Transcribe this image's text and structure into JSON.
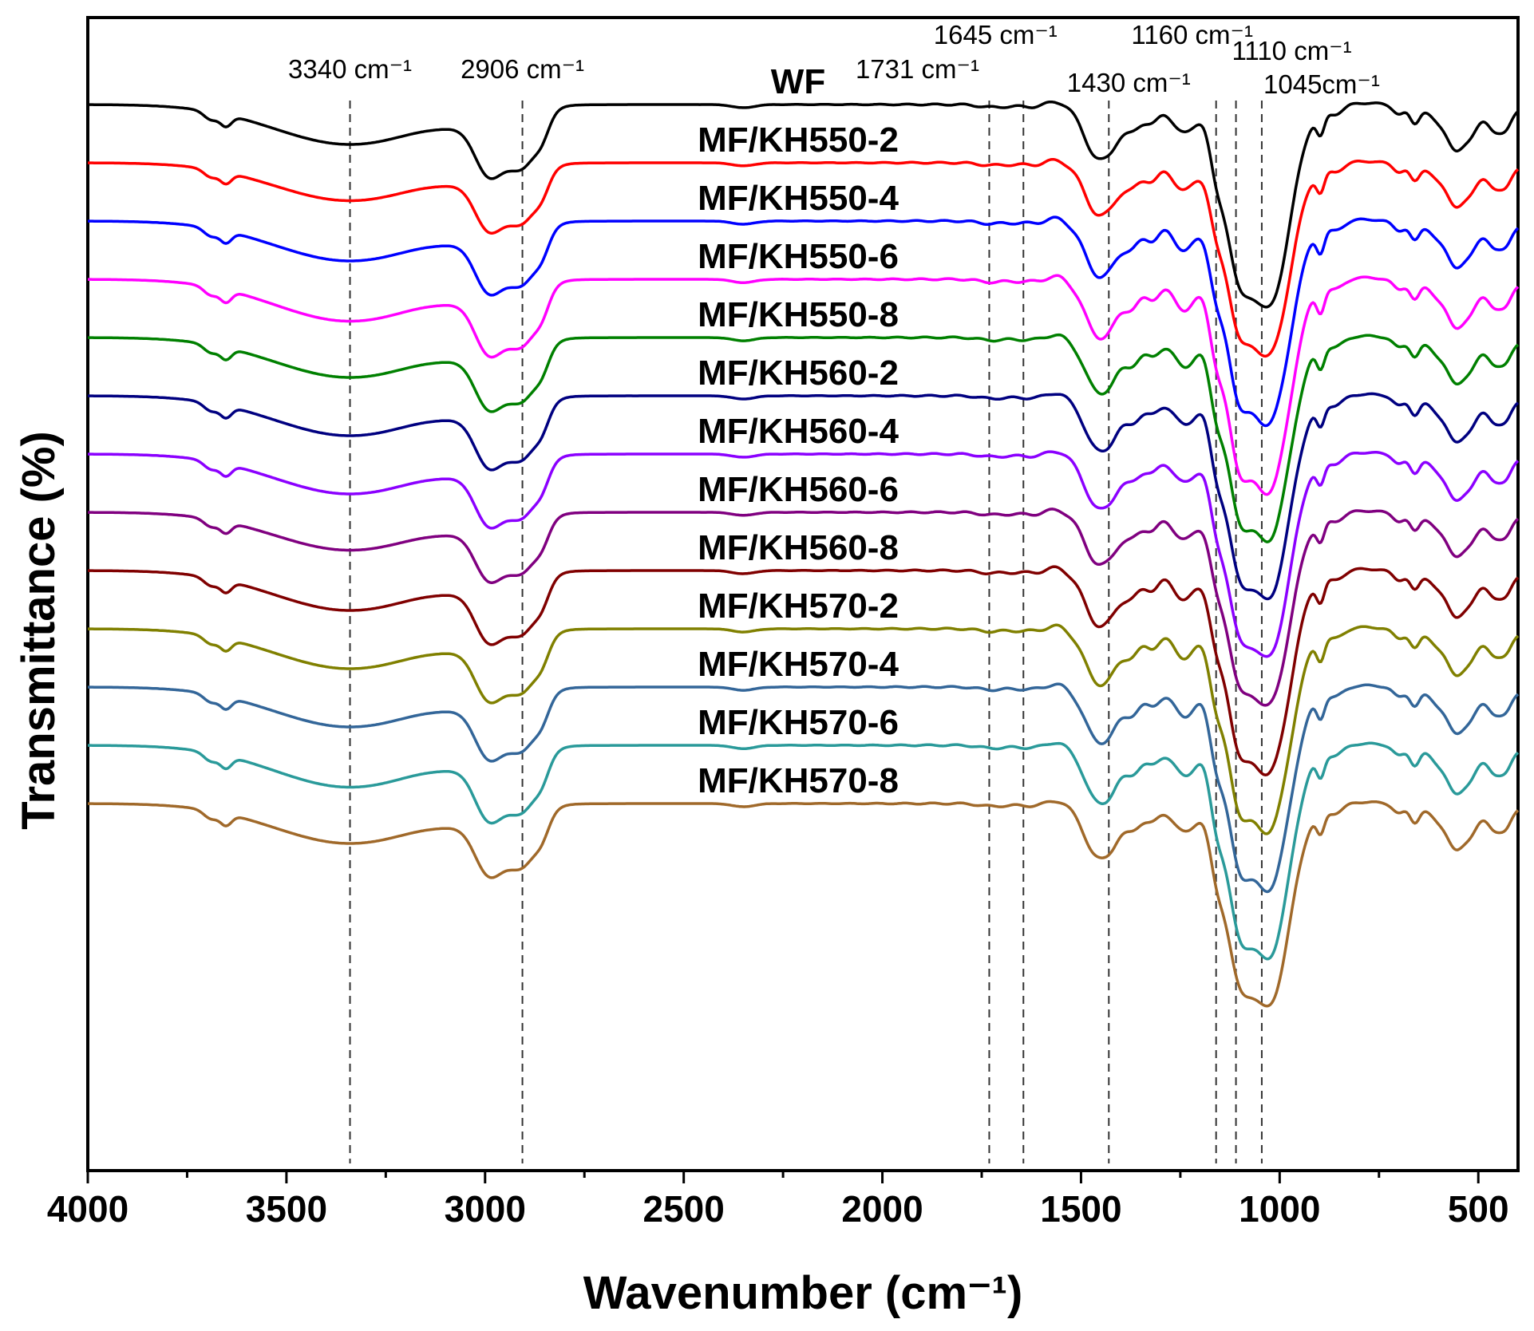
{
  "chart_data": {
    "type": "line",
    "title": "",
    "xlabel": "Wavenumber (cm⁻¹)",
    "ylabel": "Transmittance (%)",
    "xlim": [
      4000,
      400
    ],
    "x_reversed": true,
    "x_ticks": [
      4000,
      3500,
      3000,
      2500,
      2000,
      1500,
      1000,
      500
    ],
    "y_tick_labels": false,
    "grid": false,
    "legend": "inline labels above each curve",
    "peak_markers": [
      {
        "wavenumber": 3340,
        "label": "3340 cm⁻¹"
      },
      {
        "wavenumber": 2906,
        "label": "2906 cm⁻¹"
      },
      {
        "wavenumber": 1731,
        "label": "1731 cm⁻¹"
      },
      {
        "wavenumber": 1645,
        "label": "1645 cm⁻¹"
      },
      {
        "wavenumber": 1430,
        "label": "1430 cm⁻¹"
      },
      {
        "wavenumber": 1160,
        "label": "1160 cm⁻¹"
      },
      {
        "wavenumber": 1110,
        "label": "1110 cm⁻¹"
      },
      {
        "wavenumber": 1045,
        "label": "1045cm⁻¹"
      }
    ],
    "series": [
      {
        "name": "WF",
        "color": "#000000",
        "baseline": 0,
        "scale": 1.0
      },
      {
        "name": "MF/KH550-2",
        "color": "#ff0000",
        "baseline": 1,
        "scale": 0.95
      },
      {
        "name": "MF/KH550-4",
        "color": "#0000ff",
        "baseline": 2,
        "scale": 1.0
      },
      {
        "name": "MF/KH550-6",
        "color": "#ff00ff",
        "baseline": 3,
        "scale": 1.05
      },
      {
        "name": "MF/KH550-8",
        "color": "#008000",
        "baseline": 4,
        "scale": 1.0
      },
      {
        "name": "MF/KH560-2",
        "color": "#000080",
        "baseline": 5,
        "scale": 1.0
      },
      {
        "name": "MF/KH560-4",
        "color": "#8b00ff",
        "baseline": 6,
        "scale": 1.0
      },
      {
        "name": "MF/KH560-6",
        "color": "#800080",
        "baseline": 7,
        "scale": 0.95
      },
      {
        "name": "MF/KH560-8",
        "color": "#800000",
        "baseline": 8,
        "scale": 1.0
      },
      {
        "name": "MF/KH570-2",
        "color": "#808000",
        "baseline": 9,
        "scale": 1.0
      },
      {
        "name": "MF/KH570-4",
        "color": "#336699",
        "baseline": 10,
        "scale": 1.0
      },
      {
        "name": "MF/KH570-6",
        "color": "#2a9a9a",
        "baseline": 11,
        "scale": 1.05
      },
      {
        "name": "MF/KH570-8",
        "color": "#a0692a",
        "baseline": 12,
        "scale": 1.0
      }
    ]
  }
}
